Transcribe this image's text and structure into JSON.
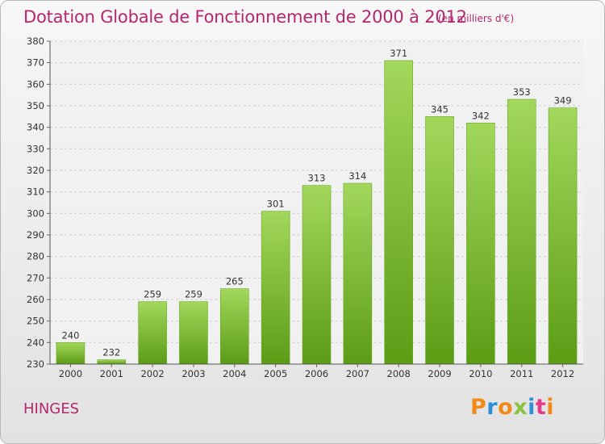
{
  "header": {
    "title": "Dotation Globale de Fonctionnement de 2000 à 2012",
    "subtitle": "(en milliers d'€)"
  },
  "footer": {
    "commune": "HINGES",
    "logo_text": "Proxiti"
  },
  "colors": {
    "title": "#b4276d",
    "bar_light": "#9ed458",
    "bar_dark": "#5f9f17",
    "logo": [
      "#f28a1a",
      "#2c8fd6",
      "#f28a1a",
      "#8ac43f",
      "#2c8fd6",
      "#e33b8a",
      "#f28a1a"
    ]
  },
  "chart_data": {
    "type": "bar",
    "categories": [
      "2000",
      "2001",
      "2002",
      "2003",
      "2004",
      "2005",
      "2006",
      "2007",
      "2008",
      "2009",
      "2010",
      "2011",
      "2012"
    ],
    "values": [
      240,
      232,
      259,
      259,
      265,
      301,
      313,
      314,
      371,
      345,
      342,
      353,
      349
    ],
    "title": "Dotation Globale de Fonctionnement de 2000 à 2012",
    "xlabel": "",
    "ylabel": "",
    "ylim": [
      230,
      380
    ],
    "yticks": [
      230,
      240,
      250,
      260,
      270,
      280,
      290,
      300,
      310,
      320,
      330,
      340,
      350,
      360,
      370,
      380
    ],
    "grid": true,
    "data_labels": true
  }
}
